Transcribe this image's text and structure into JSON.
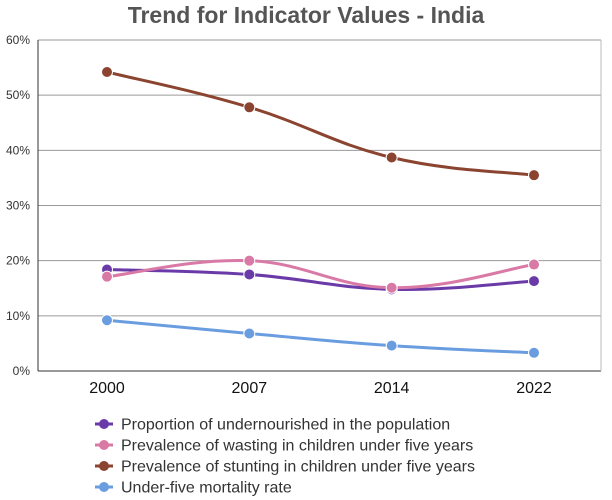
{
  "chart_data": {
    "type": "line",
    "title": "Trend for Indicator Values - India",
    "xlabel": "",
    "ylabel": "",
    "categories": [
      "2000",
      "2007",
      "2014",
      "2022"
    ],
    "y_tick_labels": [
      "0%",
      "10%",
      "20%",
      "30%",
      "40%",
      "50%",
      "60%"
    ],
    "ylim": [
      0,
      60
    ],
    "grid": "horizontal",
    "legend_position": "bottom",
    "series": [
      {
        "name": "Proportion of undernourished in the population",
        "color": "#6a3aa8",
        "values": [
          18.4,
          17.5,
          14.8,
          16.3
        ]
      },
      {
        "name": "Prevalence of wasting in children under five years",
        "color": "#d97aa6",
        "values": [
          17.1,
          20.0,
          15.1,
          19.3
        ]
      },
      {
        "name": "Prevalence of stunting in children under five years",
        "color": "#8b4430",
        "values": [
          54.2,
          47.8,
          38.7,
          35.5
        ]
      },
      {
        "name": "Under-five mortality rate",
        "color": "#6a9de0",
        "values": [
          9.2,
          6.8,
          4.6,
          3.3
        ]
      }
    ]
  }
}
